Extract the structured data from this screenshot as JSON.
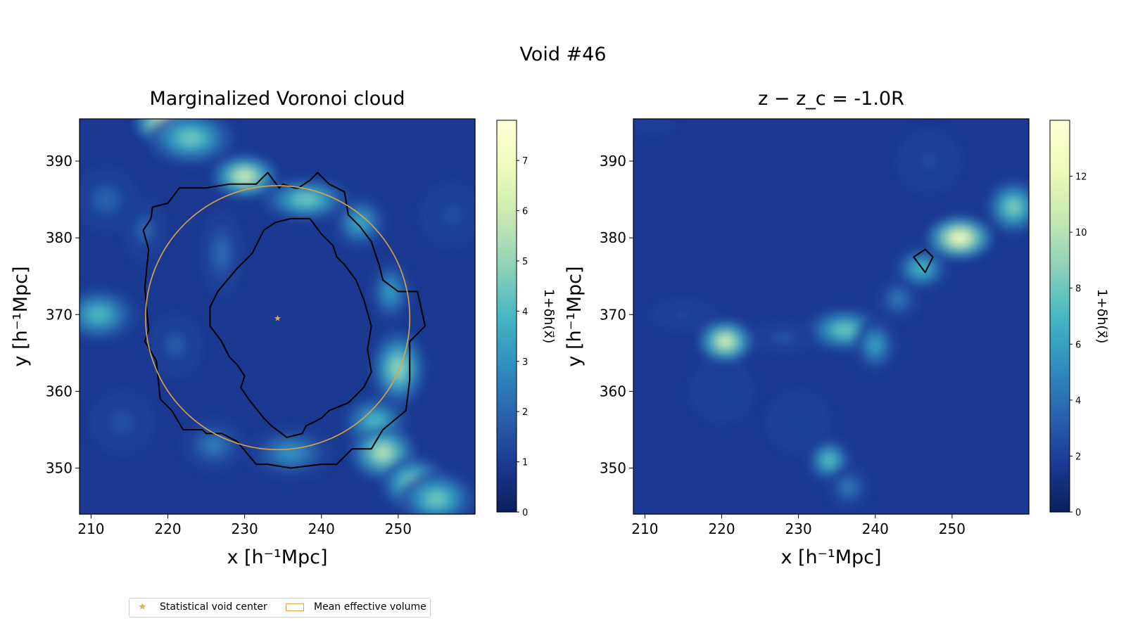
{
  "figure": {
    "suptitle": "Void #46"
  },
  "colors": {
    "star": "#d9b35a",
    "circle": "#d9a347",
    "contour": "#000000",
    "colormap": [
      "#0a1f5c",
      "#1c3a93",
      "#2a63ad",
      "#2f8fbf",
      "#46b7c2",
      "#8dd1b8",
      "#c6e8b2",
      "#effab8",
      "#ffffd9"
    ]
  },
  "legend": {
    "star_label": "Statistical void center",
    "circle_label": "Mean effective volume"
  },
  "chart_data": [
    {
      "type": "heatmap",
      "title": "Marginalized Voronoi cloud",
      "xlabel": "x [h⁻¹Mpc]",
      "ylabel": "y [h⁻¹Mpc]",
      "xlim": [
        208.5,
        260
      ],
      "ylim": [
        344,
        395.5
      ],
      "xticks": [
        210,
        220,
        230,
        240,
        250
      ],
      "yticks": [
        350,
        360,
        370,
        380,
        390
      ],
      "colorbar": {
        "label": "1+δh(x⃗)",
        "range": [
          0,
          7.8
        ],
        "ticks": [
          0,
          1,
          2,
          3,
          4,
          5,
          6,
          7
        ]
      },
      "void_center": {
        "x": 234.3,
        "y": 369.6
      },
      "mean_effective_radius": 17.2,
      "contours": [
        [
          [
            233.0,
            388.5
          ],
          [
            231.5,
            387.0
          ],
          [
            228.0,
            387.0
          ],
          [
            225.0,
            386.5
          ],
          [
            221.5,
            386.5
          ],
          [
            220.0,
            384.5
          ],
          [
            218.0,
            384.0
          ],
          [
            217.8,
            382.5
          ],
          [
            216.8,
            381.0
          ],
          [
            217.5,
            378.5
          ],
          [
            217.0,
            373.5
          ],
          [
            217.5,
            368.0
          ],
          [
            217.0,
            366.5
          ],
          [
            218.5,
            364.0
          ],
          [
            219.0,
            359.0
          ],
          [
            220.5,
            357.5
          ],
          [
            222.0,
            355.0
          ],
          [
            224.5,
            355.0
          ],
          [
            225.0,
            354.5
          ],
          [
            227.0,
            354.5
          ],
          [
            229.0,
            353.5
          ],
          [
            231.5,
            350.5
          ],
          [
            233.0,
            350.5
          ],
          [
            236.0,
            350.0
          ],
          [
            240.0,
            350.5
          ],
          [
            242.0,
            350.5
          ],
          [
            244.0,
            352.5
          ],
          [
            246.5,
            352.5
          ],
          [
            248.0,
            355.0
          ],
          [
            251.0,
            357.5
          ],
          [
            251.5,
            361.5
          ],
          [
            251.5,
            365.0
          ],
          [
            251.5,
            366.5
          ],
          [
            253.5,
            368.5
          ],
          [
            252.5,
            373.0
          ],
          [
            250.0,
            373.0
          ],
          [
            248.0,
            374.5
          ],
          [
            247.5,
            376.5
          ],
          [
            246.5,
            379.5
          ],
          [
            245.0,
            381.5
          ],
          [
            243.5,
            383.0
          ],
          [
            243.0,
            386.0
          ],
          [
            242.0,
            386.5
          ],
          [
            241.0,
            387.0
          ],
          [
            239.5,
            388.5
          ],
          [
            238.5,
            387.5
          ],
          [
            237.0,
            386.5
          ],
          [
            236.5,
            386.5
          ],
          [
            235.0,
            387.0
          ],
          [
            234.5,
            386.5
          ],
          [
            233.0,
            388.5
          ]
        ],
        [
          [
            236.0,
            382.5
          ],
          [
            234.0,
            382.0
          ],
          [
            232.5,
            381.0
          ],
          [
            231.0,
            378.0
          ],
          [
            230.0,
            377.0
          ],
          [
            229.0,
            376.0
          ],
          [
            226.5,
            373.0
          ],
          [
            225.5,
            371.0
          ],
          [
            225.5,
            368.5
          ],
          [
            227.0,
            366.5
          ],
          [
            228.0,
            364.5
          ],
          [
            229.0,
            363.5
          ],
          [
            230.0,
            362.0
          ],
          [
            229.5,
            360.5
          ],
          [
            230.5,
            359.0
          ],
          [
            232.5,
            356.5
          ],
          [
            233.5,
            355.5
          ],
          [
            235.5,
            354.0
          ],
          [
            237.5,
            354.5
          ],
          [
            238.0,
            355.5
          ],
          [
            240.0,
            356.5
          ],
          [
            241.0,
            357.5
          ],
          [
            243.5,
            358.5
          ],
          [
            245.5,
            360.5
          ],
          [
            246.5,
            362.5
          ],
          [
            246.0,
            365.5
          ],
          [
            246.5,
            368.5
          ],
          [
            245.5,
            372.0
          ],
          [
            244.5,
            374.5
          ],
          [
            243.0,
            376.5
          ],
          [
            242.0,
            377.5
          ],
          [
            241.5,
            379.0
          ],
          [
            240.0,
            380.5
          ],
          [
            238.5,
            382.5
          ],
          [
            236.0,
            382.5
          ]
        ]
      ],
      "density_features": [
        {
          "x": 220.0,
          "y": 395.0,
          "v": 7.5,
          "sx": 3.0,
          "sy": 2.0
        },
        {
          "x": 223.0,
          "y": 393.0,
          "v": 4.5,
          "sx": 4.0,
          "sy": 2.5
        },
        {
          "x": 230.0,
          "y": 388.0,
          "v": 6.0,
          "sx": 3.0,
          "sy": 2.0
        },
        {
          "x": 238.0,
          "y": 385.0,
          "v": 4.5,
          "sx": 4.0,
          "sy": 2.0
        },
        {
          "x": 245.0,
          "y": 382.0,
          "v": 3.5,
          "sx": 2.5,
          "sy": 2.5
        },
        {
          "x": 249.0,
          "y": 373.0,
          "v": 3.2,
          "sx": 2.0,
          "sy": 3.0
        },
        {
          "x": 250.0,
          "y": 363.0,
          "v": 5.0,
          "sx": 2.5,
          "sy": 3.5
        },
        {
          "x": 247.0,
          "y": 356.0,
          "v": 4.0,
          "sx": 3.0,
          "sy": 2.5
        },
        {
          "x": 248.0,
          "y": 352.0,
          "v": 5.5,
          "sx": 3.0,
          "sy": 2.5
        },
        {
          "x": 252.0,
          "y": 348.0,
          "v": 5.0,
          "sx": 3.0,
          "sy": 2.5
        },
        {
          "x": 255.0,
          "y": 346.0,
          "v": 4.5,
          "sx": 3.5,
          "sy": 2.5
        },
        {
          "x": 236.0,
          "y": 352.0,
          "v": 3.0,
          "sx": 4.0,
          "sy": 2.5
        },
        {
          "x": 226.0,
          "y": 353.0,
          "v": 2.5,
          "sx": 3.0,
          "sy": 2.5
        },
        {
          "x": 211.0,
          "y": 370.0,
          "v": 4.0,
          "sx": 3.5,
          "sy": 2.5
        },
        {
          "x": 212.0,
          "y": 385.0,
          "v": 2.0,
          "sx": 3.0,
          "sy": 3.0
        },
        {
          "x": 217.0,
          "y": 381.0,
          "v": 2.0,
          "sx": 2.0,
          "sy": 3.0
        },
        {
          "x": 227.0,
          "y": 378.0,
          "v": 2.2,
          "sx": 2.0,
          "sy": 4.0
        },
        {
          "x": 221.0,
          "y": 366.0,
          "v": 1.8,
          "sx": 2.5,
          "sy": 3.0
        },
        {
          "x": 257.0,
          "y": 383.0,
          "v": 1.5,
          "sx": 3.0,
          "sy": 3.0
        },
        {
          "x": 214.0,
          "y": 356.0,
          "v": 1.6,
          "sx": 3.0,
          "sy": 3.0
        }
      ]
    },
    {
      "type": "heatmap",
      "title": "z − z_c = -1.0R",
      "xlabel": "x [h⁻¹Mpc]",
      "ylabel": "y [h⁻¹Mpc]",
      "xlim": [
        208.5,
        260
      ],
      "ylim": [
        344,
        395.5
      ],
      "xticks": [
        210,
        220,
        230,
        240,
        250
      ],
      "yticks": [
        350,
        360,
        370,
        380,
        390
      ],
      "colorbar": {
        "label": "1+δh(x⃗)",
        "range": [
          0,
          14
        ],
        "ticks": [
          0,
          2,
          4,
          6,
          8,
          10,
          12
        ]
      },
      "contours": [
        [
          [
            245.0,
            377.5
          ],
          [
            246.5,
            378.5
          ],
          [
            247.5,
            377.5
          ],
          [
            246.5,
            375.5
          ],
          [
            245.0,
            377.5
          ]
        ]
      ],
      "density_features": [
        {
          "x": 220.5,
          "y": 366.5,
          "v": 11.0,
          "sx": 2.5,
          "sy": 2.0
        },
        {
          "x": 236.0,
          "y": 368.0,
          "v": 8.0,
          "sx": 3.5,
          "sy": 2.0
        },
        {
          "x": 240.0,
          "y": 366.0,
          "v": 6.0,
          "sx": 2.0,
          "sy": 2.5
        },
        {
          "x": 251.0,
          "y": 380.0,
          "v": 12.5,
          "sx": 3.0,
          "sy": 2.0
        },
        {
          "x": 258.0,
          "y": 384.0,
          "v": 8.5,
          "sx": 2.5,
          "sy": 2.5
        },
        {
          "x": 246.0,
          "y": 376.0,
          "v": 7.0,
          "sx": 2.5,
          "sy": 2.0
        },
        {
          "x": 243.0,
          "y": 372.0,
          "v": 4.5,
          "sx": 2.0,
          "sy": 2.0
        },
        {
          "x": 234.0,
          "y": 351.0,
          "v": 7.5,
          "sx": 2.0,
          "sy": 2.0
        },
        {
          "x": 236.5,
          "y": 347.5,
          "v": 4.5,
          "sx": 2.0,
          "sy": 2.0
        },
        {
          "x": 228.0,
          "y": 367.0,
          "v": 3.0,
          "sx": 3.0,
          "sy": 1.5
        },
        {
          "x": 215.0,
          "y": 370.0,
          "v": 2.5,
          "sx": 3.0,
          "sy": 1.5
        },
        {
          "x": 211.0,
          "y": 395.0,
          "v": 2.5,
          "sx": 2.0,
          "sy": 1.0
        },
        {
          "x": 247.0,
          "y": 390.0,
          "v": 2.5,
          "sx": 3.0,
          "sy": 3.0
        },
        {
          "x": 220.0,
          "y": 360.0,
          "v": 2.0,
          "sx": 3.0,
          "sy": 3.0
        },
        {
          "x": 230.0,
          "y": 356.0,
          "v": 1.8,
          "sx": 3.0,
          "sy": 3.0
        }
      ]
    }
  ]
}
